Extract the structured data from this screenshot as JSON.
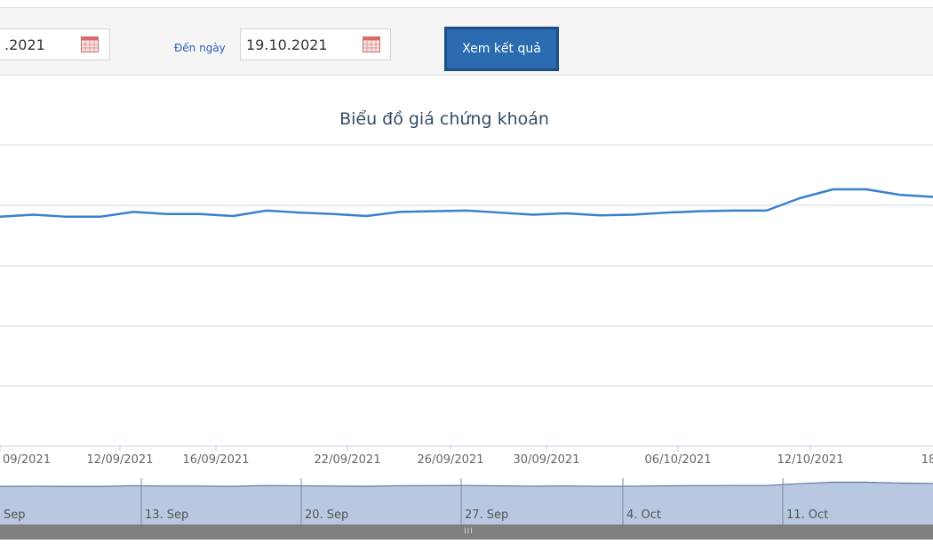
{
  "filters": {
    "from_date_value": ".2021",
    "to_label": "Đến ngày",
    "to_date_value": "19.10.2021",
    "submit_label": "Xem kết quả"
  },
  "icons": {
    "calendar": "calendar-icon"
  },
  "chart_data": {
    "type": "line",
    "title": "Biểu đồ giá chứng khoán",
    "xlabel": "",
    "ylabel": "",
    "grid": true,
    "line_color": "#3a80cc",
    "x_tick_labels": [
      "09/2021",
      "12/09/2021",
      "16/09/2021",
      "22/09/2021",
      "26/09/2021",
      "30/09/2021",
      "06/10/2021",
      "12/10/2021",
      "18"
    ],
    "series": [
      {
        "values": [
          44.6,
          44.9,
          44.6,
          44.6,
          45.3,
          45.0,
          45.0,
          44.7,
          45.5,
          45.2,
          45.0,
          44.7,
          45.3,
          45.4,
          45.5,
          45.2,
          44.9,
          45.1,
          44.8,
          44.9,
          45.2,
          45.4,
          45.5,
          45.5,
          47.3,
          48.6,
          48.6,
          47.8,
          47.5
        ]
      }
    ],
    "navigator": {
      "tick_labels": [
        "Sep",
        "13. Sep",
        "20. Sep",
        "27. Sep",
        "4. Oct",
        "11. Oct"
      ],
      "fill_color": "#b8c8e0"
    }
  }
}
